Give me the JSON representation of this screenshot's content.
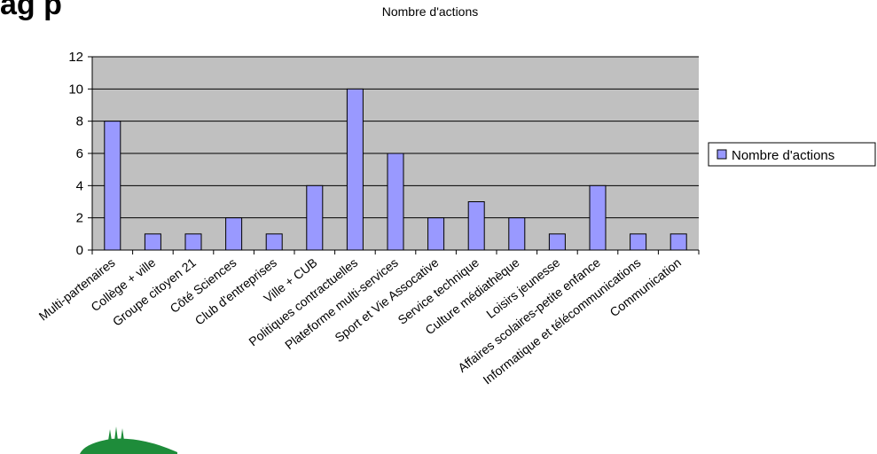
{
  "page": {
    "partial_heading": "ag p"
  },
  "chart_data": {
    "type": "bar",
    "title": "Nombre d'actions",
    "xlabel": "",
    "ylabel": "",
    "ylim": [
      0,
      12
    ],
    "yticks": [
      0,
      2,
      4,
      6,
      8,
      10,
      12
    ],
    "grid": true,
    "legend_position": "right",
    "categories": [
      "Multi-partenaires",
      "Collège + ville",
      "Groupe citoyen 21",
      "Côté Sciences",
      "Club d'entreprises",
      "Ville + CUB",
      "Politiques contractuelles",
      "Plateforme multi-services",
      "Sport et Vie Assocative",
      "Service technique",
      "Culture médiathèque",
      "Loisirs jeunesse",
      "Affaires scolaires-petite enfance",
      "Informatique et télécommunications",
      "Communication"
    ],
    "series": [
      {
        "name": "Nombre d'actions",
        "values": [
          8,
          1,
          1,
          2,
          1,
          4,
          10,
          6,
          2,
          3,
          2,
          1,
          4,
          1,
          1
        ]
      }
    ],
    "colors": {
      "bar_fill": "#9999ff",
      "bar_stroke": "#000000",
      "plot_bg": "#c0c0c0",
      "grid": "#000000",
      "logo_green": "#1e8c3a"
    }
  }
}
